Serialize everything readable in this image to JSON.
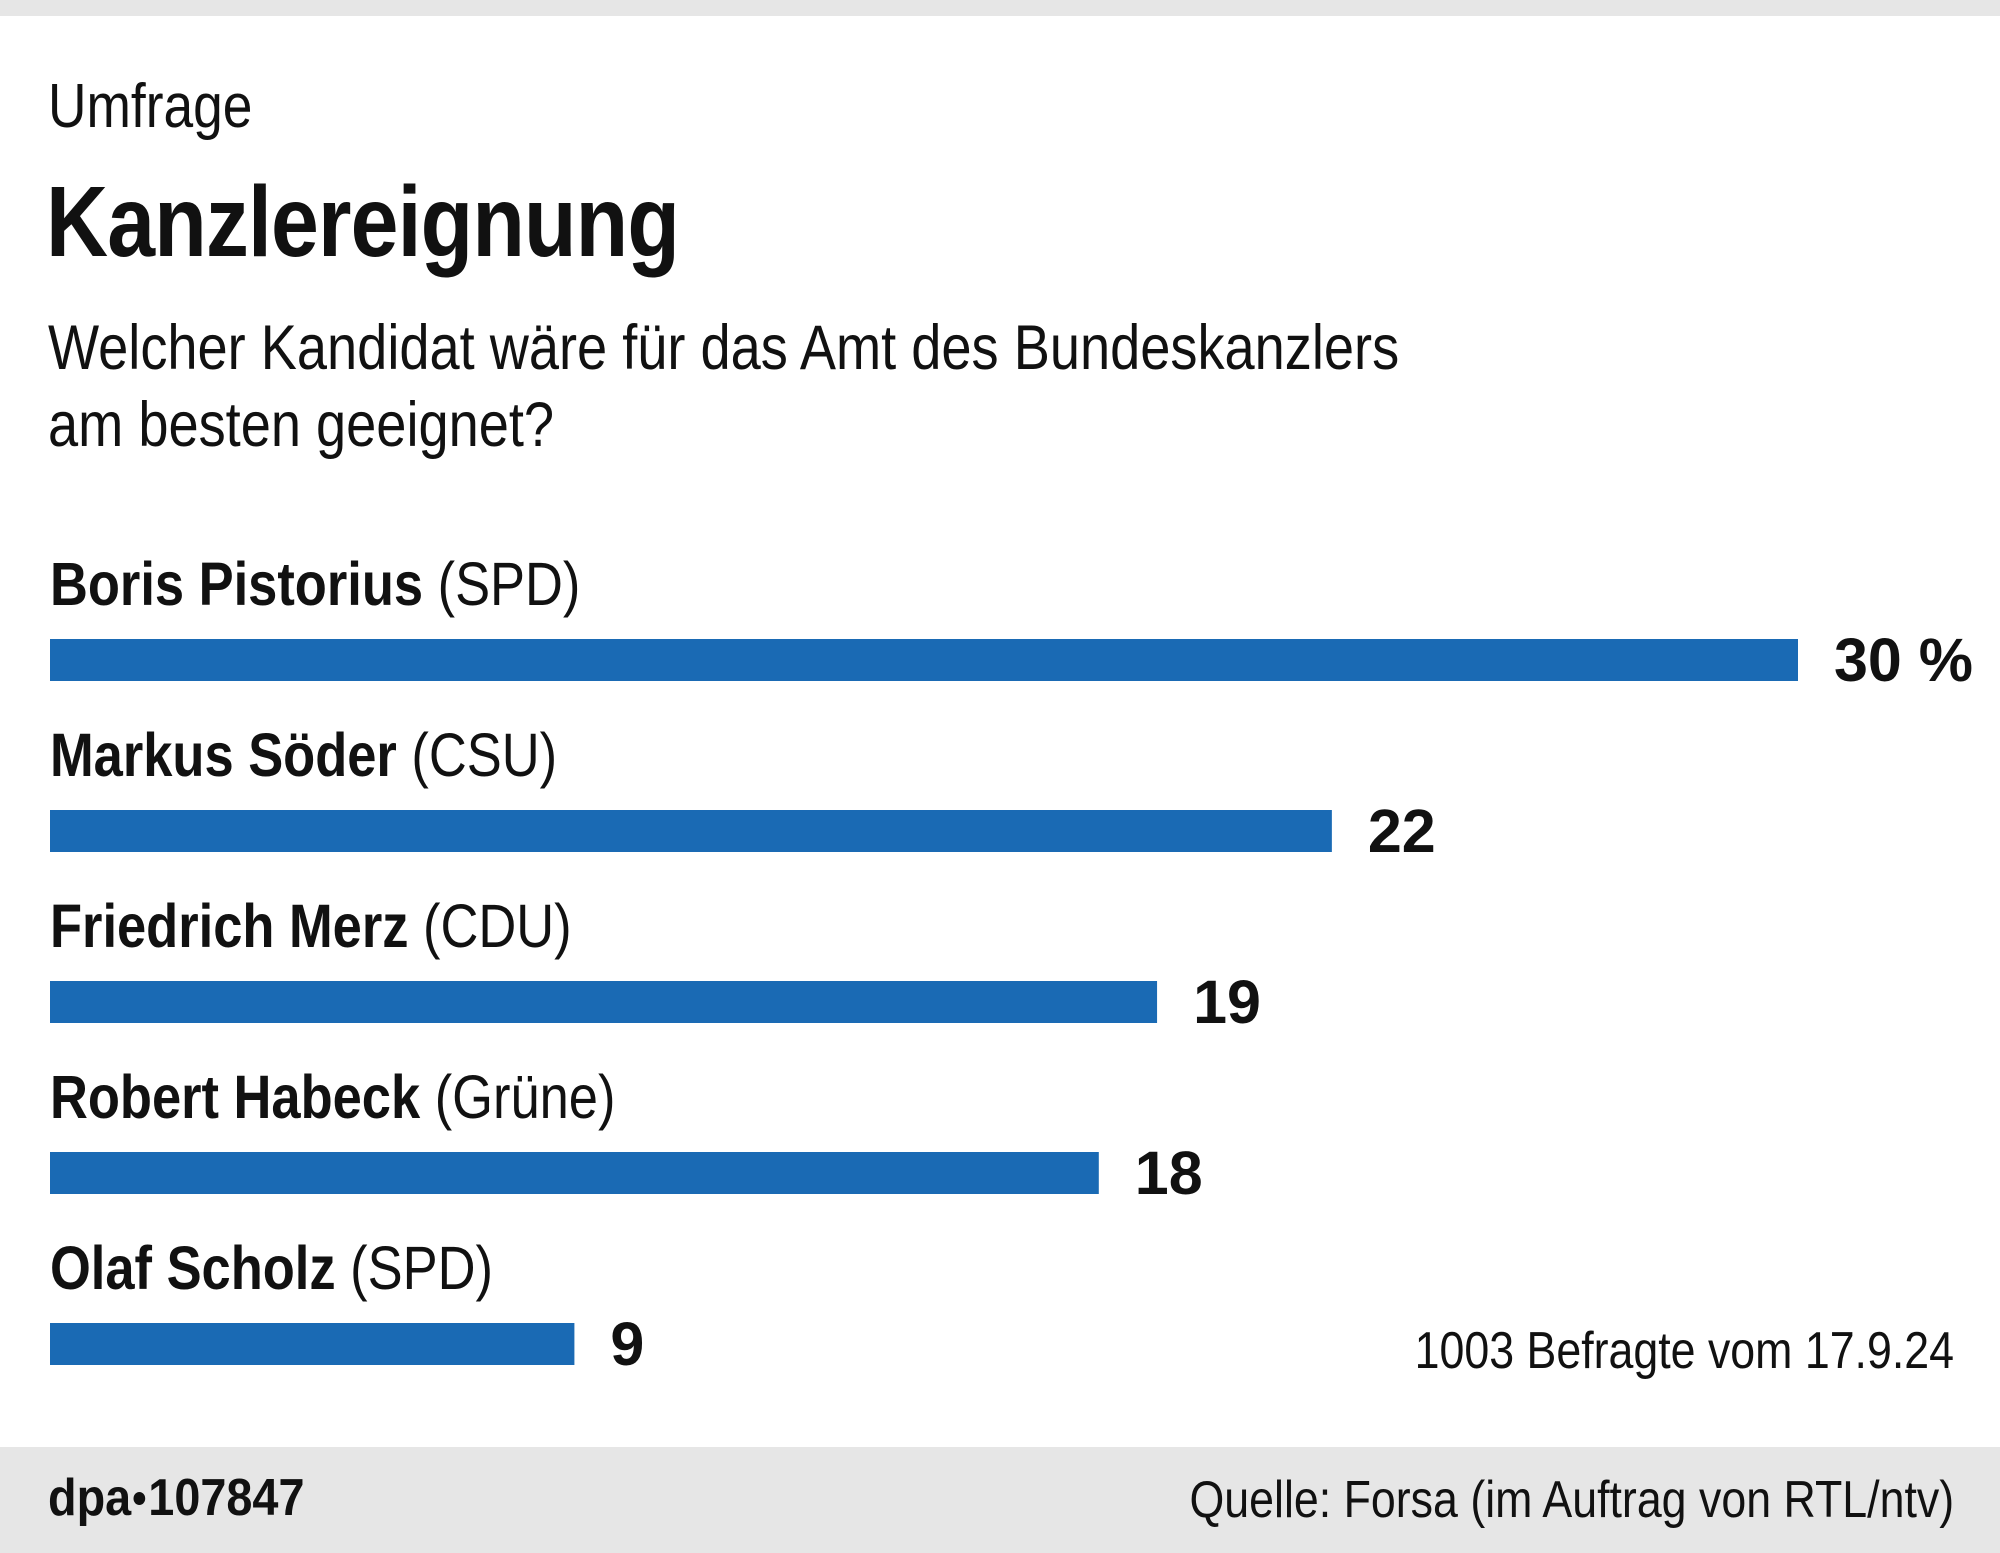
{
  "header": {
    "kicker": "Umfrage",
    "title": "Kanzlereignung",
    "subtitle": "Welcher Kandidat wäre für das Amt des Bundeskanzlers\nam besten geeignet?"
  },
  "chart_data": {
    "type": "bar",
    "orientation": "horizontal",
    "title": "Kanzlereignung",
    "subtitle": "Welcher Kandidat wäre für das Amt des Bundeskanzlers am besten geeignet?",
    "categories": [
      "Boris Pistorius (SPD)",
      "Markus Söder (CSU)",
      "Friedrich Merz (CDU)",
      "Robert Habeck (Grüne)",
      "Olaf Scholz (SPD)"
    ],
    "candidates": [
      {
        "name": "Boris Pistorius",
        "party": "(SPD)",
        "value": 30,
        "label": "30 %"
      },
      {
        "name": "Markus Söder",
        "party": "(CSU)",
        "value": 22,
        "label": "22"
      },
      {
        "name": "Friedrich Merz",
        "party": "(CDU)",
        "value": 19,
        "label": "19"
      },
      {
        "name": "Robert Habeck",
        "party": "(Grüne)",
        "value": 18,
        "label": "18"
      },
      {
        "name": "Olaf Scholz",
        "party": "(SPD)",
        "value": 9,
        "label": "9"
      }
    ],
    "values": [
      30,
      22,
      19,
      18,
      9
    ],
    "unit": "%",
    "xlabel": "",
    "ylabel": "",
    "xlim": [
      0,
      30
    ],
    "grid": false,
    "legend": "none",
    "bar_color": "#1a6ab4",
    "annotation": "1003 Befragte vom 17.9.24"
  },
  "footer": {
    "credit_prefix": "dpa",
    "credit_number": "107847",
    "source": "Quelle: Forsa (im Auftrag von RTL/ntv)"
  },
  "colors": {
    "bar": "#1a6ab4",
    "band": "#e6e6e6",
    "text": "#111111"
  }
}
